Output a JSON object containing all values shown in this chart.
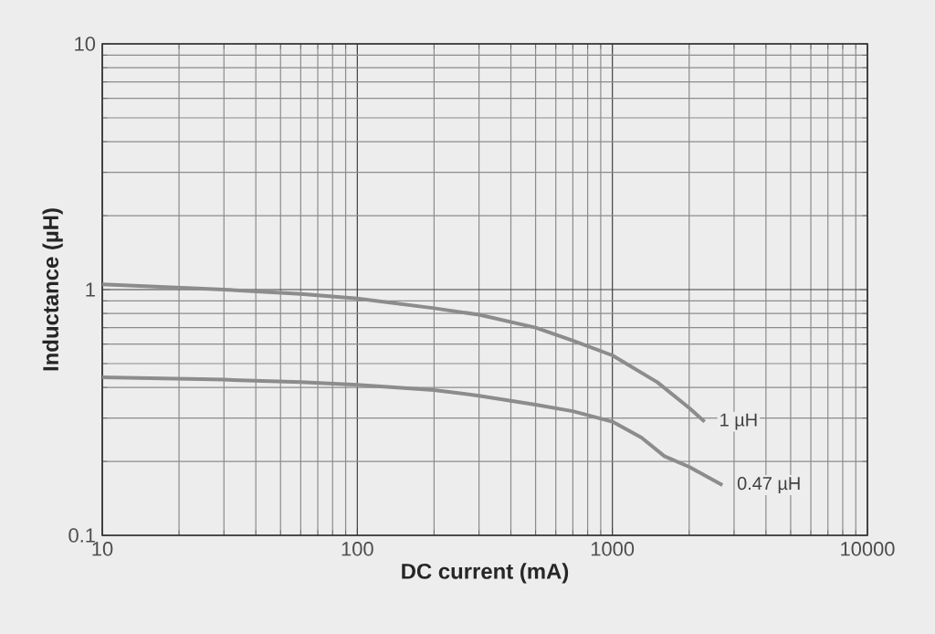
{
  "chart_data": {
    "type": "line",
    "xlabel": "DC current (mA)",
    "ylabel": "Inductance (µH)",
    "log": "xy",
    "grid": true,
    "marker": "none",
    "line_style": "solid",
    "xlim": [
      10,
      10000
    ],
    "ylim": [
      0.1,
      10
    ],
    "xticks": [
      10,
      100,
      1000,
      10000
    ],
    "yticks": [
      0.1,
      1,
      10
    ],
    "series": [
      {
        "name": "1 µH",
        "color": "#8c8c8c",
        "x": [
          10,
          30,
          60,
          100,
          200,
          300,
          500,
          700,
          1000,
          1500,
          2000,
          2300
        ],
        "values": [
          1.05,
          1.0,
          0.96,
          0.92,
          0.84,
          0.79,
          0.7,
          0.62,
          0.54,
          0.42,
          0.33,
          0.29
        ]
      },
      {
        "name": "0.47 µH",
        "color": "#8c8c8c",
        "x": [
          10,
          30,
          60,
          100,
          200,
          300,
          500,
          700,
          1000,
          1300,
          1600,
          2000,
          2700
        ],
        "values": [
          0.44,
          0.43,
          0.42,
          0.41,
          0.39,
          0.37,
          0.34,
          0.32,
          0.29,
          0.25,
          0.21,
          0.19,
          0.16
        ]
      }
    ]
  }
}
